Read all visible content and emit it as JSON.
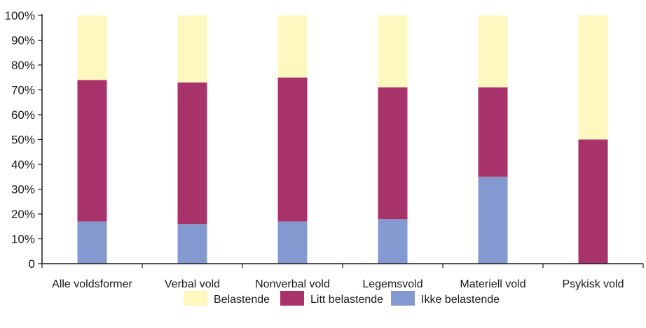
{
  "chart_data": {
    "type": "bar",
    "stacked": true,
    "categories": [
      "Alle voldsformer",
      "Verbal vold",
      "Nonverbal vold",
      "Legemsvold",
      "Materiell vold",
      "Psykisk vold"
    ],
    "series": [
      {
        "name": "Ikke belastende",
        "color": "#8399cf",
        "values": [
          17,
          16,
          17,
          18,
          35,
          0
        ]
      },
      {
        "name": "Litt belastende",
        "color": "#a8336b",
        "values": [
          57,
          57,
          58,
          53,
          36,
          50
        ]
      },
      {
        "name": "Belastende",
        "color": "#fdf8c0",
        "values": [
          26,
          27,
          25,
          29,
          29,
          50
        ]
      }
    ],
    "y_ticks": [
      "0",
      "10%",
      "20%",
      "30%",
      "40%",
      "50%",
      "60%",
      "70%",
      "80%",
      "90%",
      "100%"
    ],
    "ylim": [
      0,
      100
    ],
    "grid": false,
    "legend": {
      "position": "bottom",
      "order": [
        "Belastende",
        "Litt belastende",
        "Ikke belastende"
      ]
    }
  }
}
